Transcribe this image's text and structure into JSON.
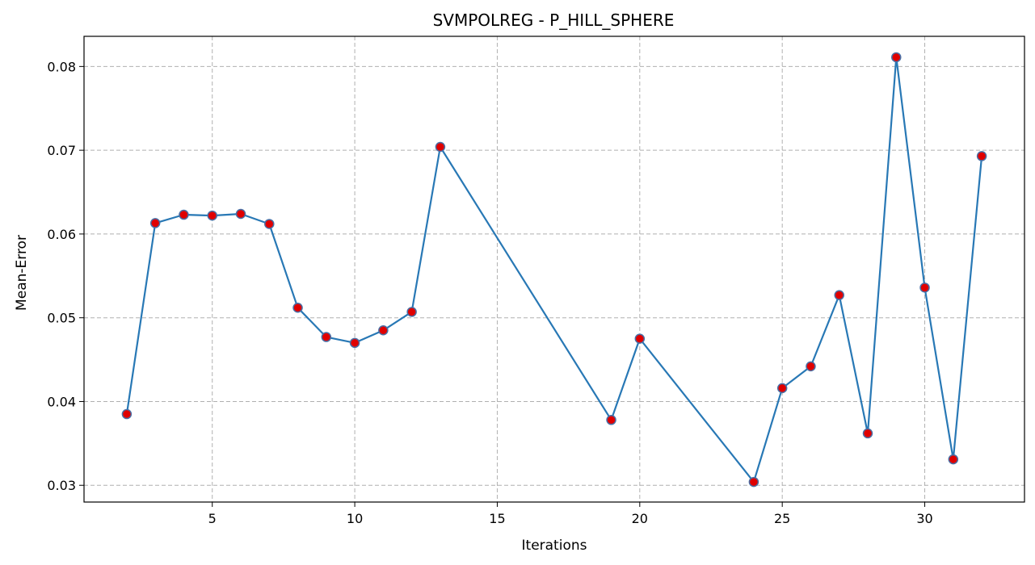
{
  "chart_data": {
    "type": "line",
    "title": "SVMPOLREG - P_HILL_SPHERE",
    "xlabel": "Iterations",
    "ylabel": "Mean-Error",
    "xlim": [
      0.5,
      33.5
    ],
    "ylim": [
      0.028,
      0.0836
    ],
    "xticks": [
      5,
      10,
      15,
      20,
      25,
      30
    ],
    "yticks": [
      0.03,
      0.04,
      0.05,
      0.06,
      0.07,
      0.08
    ],
    "ytick_labels": [
      "0.03",
      "0.04",
      "0.05",
      "0.06",
      "0.07",
      "0.08"
    ],
    "grid": true,
    "line_color": "#2878b5",
    "marker_fill": "#e00000",
    "marker_edge": "#4a6fa5",
    "series": [
      {
        "x": [
          2,
          3,
          4,
          5,
          6,
          7,
          8,
          9,
          10,
          11,
          12,
          13,
          19,
          20,
          24,
          25,
          26,
          27,
          28,
          29,
          30,
          31,
          32
        ],
        "values": [
          0.0385,
          0.0613,
          0.0623,
          0.0622,
          0.0624,
          0.0612,
          0.0512,
          0.0477,
          0.047,
          0.0485,
          0.0507,
          0.0704,
          0.0378,
          0.0475,
          0.0304,
          0.0416,
          0.0442,
          0.0527,
          0.0362,
          0.0811,
          0.0536,
          0.0331,
          0.0693
        ]
      }
    ]
  }
}
